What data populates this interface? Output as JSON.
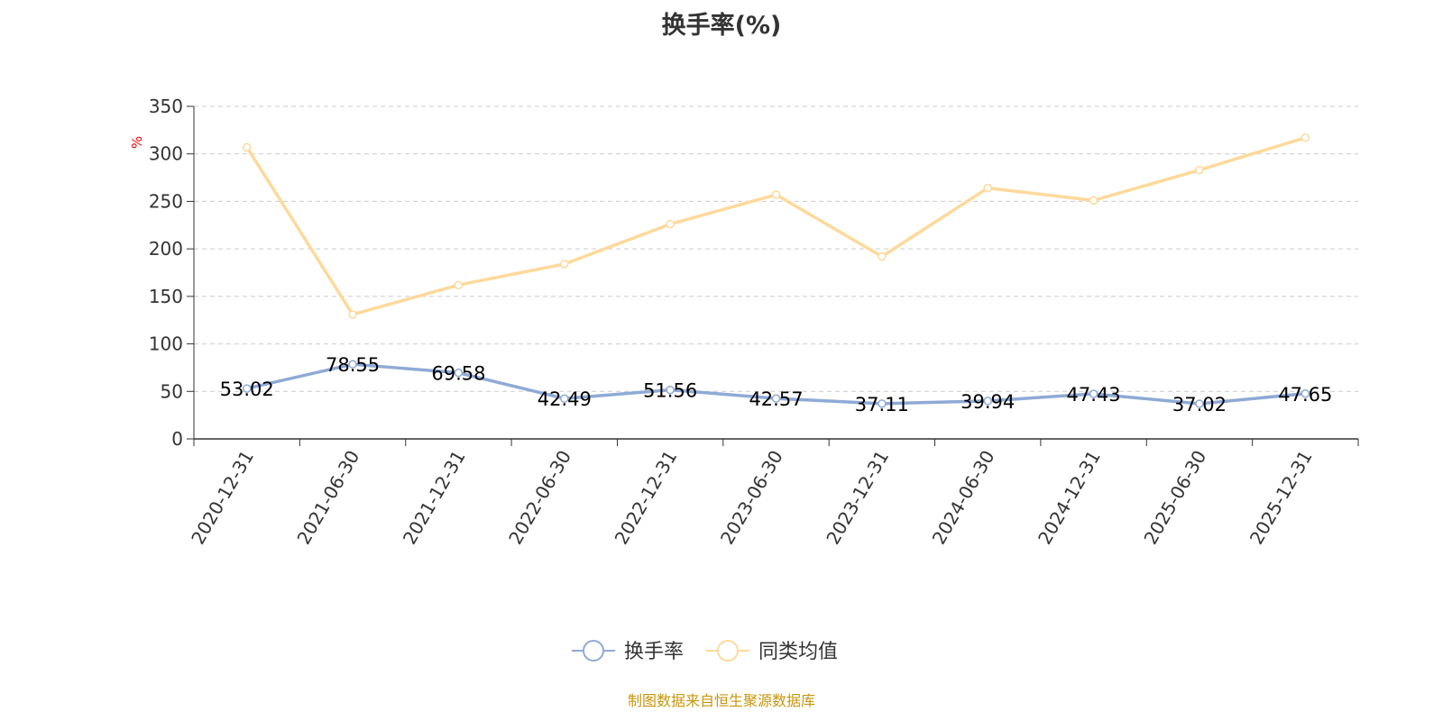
{
  "chart_data": {
    "type": "line",
    "title": "换手率(%)",
    "ylabel": "%",
    "ylim": [
      0,
      350
    ],
    "yticks": [
      0,
      50,
      100,
      150,
      200,
      250,
      300,
      350
    ],
    "grid": true,
    "legend_position": "bottom-center",
    "categories": [
      "2020-12-31",
      "2021-06-30",
      "2021-12-31",
      "2022-06-30",
      "2022-12-31",
      "2023-06-30",
      "2023-12-31",
      "2024-06-30",
      "2024-12-31",
      "2025-06-30",
      "2025-12-31"
    ],
    "series": [
      {
        "name": "换手率",
        "color": "#8eaad6",
        "show_labels": true,
        "values": [
          53.02,
          78.55,
          69.58,
          42.49,
          51.56,
          42.57,
          37.11,
          39.94,
          47.43,
          37.02,
          47.65
        ]
      },
      {
        "name": "同类均值",
        "color": "#fdd99b",
        "show_labels": false,
        "values": [
          307,
          131,
          162,
          184,
          226,
          257,
          192,
          264,
          251,
          283,
          317
        ]
      }
    ]
  },
  "source_note": "制图数据来自恒生聚源数据库",
  "colors": {
    "source_note": "#c8960c",
    "ylabel": "#ff0000",
    "axis": "#333333",
    "grid": "#cccccc"
  }
}
